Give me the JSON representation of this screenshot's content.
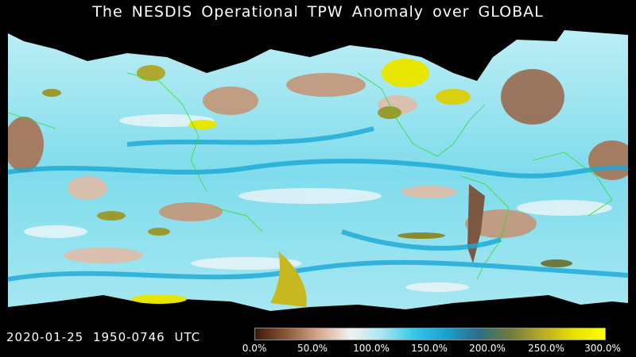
{
  "title": "The NESDIS  Operational  TPW Anomaly over GLOBAL",
  "timestamp": "2020-01-25  1950-0746  UTC",
  "colorbar": {
    "labels": [
      "0.0%",
      "50.0%",
      "100.0%",
      "150.0%",
      "200.0%",
      "250.0%",
      "300.0%"
    ],
    "stops": [
      "#3d1a08",
      "#8a5a3a",
      "#d9a98e",
      "#f2f2f2",
      "#a8e6f0",
      "#33c8e8",
      "#1aa0d0",
      "#2a6e8a",
      "#6e7a3a",
      "#b8a82a",
      "#e8e000",
      "#ffff00"
    ]
  },
  "map_colors": {
    "ocean_base": "#8fe0ef",
    "cyan": "#1cc8e6",
    "blue": "#1590c8",
    "white": "#f4f7f8",
    "brown": "#b8876b",
    "darkbrown": "#8a5a40",
    "yellow": "#e6e600",
    "olive": "#9a9a30",
    "coast": "#22dd22",
    "nodata": "#000000"
  }
}
